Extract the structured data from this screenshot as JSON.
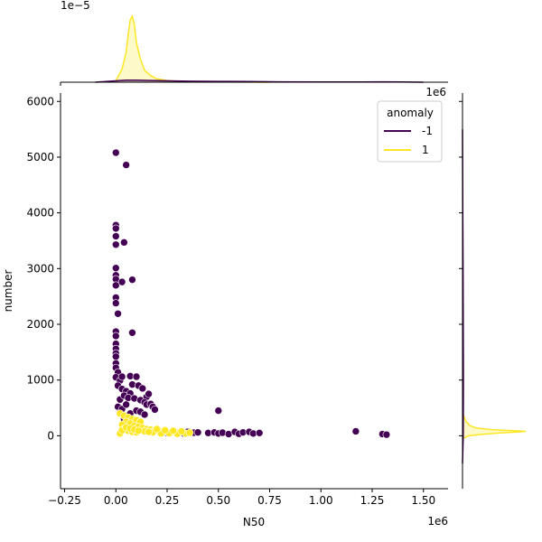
{
  "chart_data": {
    "type": "scatter",
    "xlabel": "N50",
    "ylabel": "number",
    "x_scale_text": "1e6",
    "y_scale_text": "",
    "top_marginal_scale_text": "1e−5",
    "right_marginal_scale_text": "1e6",
    "xlim": [
      -0.27,
      1.62
    ],
    "ylim": [
      -950,
      6150
    ],
    "x_ticks": [
      -0.25,
      0.0,
      0.25,
      0.5,
      0.75,
      1.0,
      1.25,
      1.5
    ],
    "x_tick_labels": [
      "−0.25",
      "0.00",
      "0.25",
      "0.50",
      "0.75",
      "1.00",
      "1.25",
      "1.50"
    ],
    "y_ticks": [
      0,
      1000,
      2000,
      3000,
      4000,
      5000,
      6000
    ],
    "y_tick_labels": [
      "0",
      "1000",
      "2000",
      "3000",
      "4000",
      "5000",
      "6000"
    ],
    "grid": false,
    "legend": {
      "title": "anomaly",
      "position": "top-right",
      "entries": [
        {
          "label": "-1",
          "color": "#440154"
        },
        {
          "label": "1",
          "color": "#fde725"
        }
      ]
    },
    "series": [
      {
        "name": "-1",
        "color": "#440154",
        "points": [
          [
            0.0,
            5080
          ],
          [
            0.05,
            4860
          ],
          [
            0.0,
            3780
          ],
          [
            0.0,
            3720
          ],
          [
            0.0,
            3580
          ],
          [
            0.0,
            3430
          ],
          [
            0.04,
            3470
          ],
          [
            0.0,
            3010
          ],
          [
            0.0,
            2880
          ],
          [
            0.0,
            2810
          ],
          [
            0.0,
            2700
          ],
          [
            0.03,
            2760
          ],
          [
            0.08,
            2800
          ],
          [
            0.0,
            2480
          ],
          [
            0.0,
            2380
          ],
          [
            0.01,
            2190
          ],
          [
            0.0,
            1870
          ],
          [
            0.0,
            1790
          ],
          [
            0.0,
            1650
          ],
          [
            0.0,
            1560
          ],
          [
            0.08,
            1850
          ],
          [
            0.0,
            1480
          ],
          [
            0.0,
            1420
          ],
          [
            0.0,
            1300
          ],
          [
            0.0,
            1220
          ],
          [
            0.01,
            1140
          ],
          [
            0.0,
            1050
          ],
          [
            0.02,
            990
          ],
          [
            0.03,
            1060
          ],
          [
            0.07,
            1070
          ],
          [
            0.1,
            1060
          ],
          [
            0.01,
            900
          ],
          [
            0.03,
            840
          ],
          [
            0.05,
            800
          ],
          [
            0.07,
            760
          ],
          [
            0.08,
            920
          ],
          [
            0.11,
            900
          ],
          [
            0.13,
            850
          ],
          [
            0.15,
            700
          ],
          [
            0.16,
            750
          ],
          [
            0.02,
            650
          ],
          [
            0.04,
            720
          ],
          [
            0.06,
            680
          ],
          [
            0.09,
            670
          ],
          [
            0.12,
            640
          ],
          [
            0.14,
            600
          ],
          [
            0.15,
            560
          ],
          [
            0.17,
            570
          ],
          [
            0.18,
            520
          ],
          [
            0.01,
            520
          ],
          [
            0.02,
            420
          ],
          [
            0.03,
            480
          ],
          [
            0.05,
            560
          ],
          [
            0.07,
            400
          ],
          [
            0.1,
            450
          ],
          [
            0.12,
            430
          ],
          [
            0.14,
            380
          ],
          [
            0.19,
            470
          ],
          [
            0.5,
            450
          ],
          [
            0.04,
            300
          ],
          [
            0.06,
            280
          ],
          [
            0.25,
            50
          ],
          [
            0.3,
            60
          ],
          [
            0.33,
            40
          ],
          [
            0.35,
            70
          ],
          [
            0.38,
            55
          ],
          [
            0.4,
            60
          ],
          [
            0.45,
            50
          ],
          [
            0.48,
            60
          ],
          [
            0.5,
            40
          ],
          [
            0.52,
            55
          ],
          [
            0.55,
            30
          ],
          [
            0.58,
            70
          ],
          [
            0.6,
            35
          ],
          [
            0.62,
            60
          ],
          [
            0.65,
            70
          ],
          [
            0.67,
            40
          ],
          [
            0.7,
            50
          ],
          [
            1.17,
            80
          ],
          [
            1.3,
            30
          ],
          [
            1.32,
            20
          ]
        ]
      },
      {
        "name": "1",
        "color": "#fde725",
        "points": [
          [
            0.02,
            400
          ],
          [
            0.04,
            360
          ],
          [
            0.06,
            330
          ],
          [
            0.08,
            300
          ],
          [
            0.1,
            280
          ],
          [
            0.12,
            250
          ],
          [
            0.05,
            250
          ],
          [
            0.03,
            200
          ],
          [
            0.07,
            220
          ],
          [
            0.09,
            180
          ],
          [
            0.11,
            160
          ],
          [
            0.13,
            140
          ],
          [
            0.15,
            120
          ],
          [
            0.17,
            110
          ],
          [
            0.19,
            100
          ],
          [
            0.21,
            90
          ],
          [
            0.23,
            80
          ],
          [
            0.25,
            70
          ],
          [
            0.27,
            65
          ],
          [
            0.29,
            60
          ],
          [
            0.31,
            55
          ],
          [
            0.04,
            130
          ],
          [
            0.06,
            90
          ],
          [
            0.08,
            70
          ],
          [
            0.1,
            60
          ],
          [
            0.14,
            80
          ],
          [
            0.18,
            60
          ],
          [
            0.22,
            40
          ],
          [
            0.26,
            45
          ],
          [
            0.3,
            35
          ],
          [
            0.34,
            40
          ],
          [
            0.36,
            55
          ],
          [
            0.02,
            40
          ],
          [
            0.03,
            100
          ],
          [
            0.05,
            150
          ],
          [
            0.07,
            130
          ],
          [
            0.09,
            110
          ],
          [
            0.11,
            90
          ],
          [
            0.16,
            70
          ],
          [
            0.2,
            120
          ],
          [
            0.24,
            100
          ],
          [
            0.28,
            90
          ],
          [
            0.32,
            80
          ]
        ]
      }
    ],
    "top_marginal_kde": {
      "series": [
        {
          "name": "1",
          "color": "#fde725",
          "x": [
            0.0,
            0.03,
            0.05,
            0.06,
            0.07,
            0.08,
            0.09,
            0.1,
            0.12,
            0.14,
            0.17,
            0.2,
            0.25,
            0.3,
            0.4,
            0.55,
            0.75
          ],
          "density": [
            0.02,
            0.2,
            0.45,
            0.72,
            0.95,
            1.0,
            0.88,
            0.6,
            0.35,
            0.18,
            0.1,
            0.05,
            0.025,
            0.015,
            0.008,
            0.004,
            0.0
          ]
        },
        {
          "name": "-1",
          "color": "#440154",
          "x": [
            -0.1,
            0.0,
            0.05,
            0.1,
            0.2,
            0.35,
            0.5,
            0.65,
            0.8,
            1.0,
            1.2,
            1.3,
            1.4,
            1.5
          ],
          "density": [
            0.0,
            0.02,
            0.03,
            0.03,
            0.025,
            0.015,
            0.012,
            0.01,
            0.006,
            0.003,
            0.004,
            0.005,
            0.003,
            0.0
          ]
        }
      ]
    },
    "right_marginal_kde": {
      "series": [
        {
          "name": "1",
          "color": "#fde725",
          "y": [
            -50,
            0,
            25,
            50,
            70,
            80,
            90,
            110,
            140,
            180,
            250,
            350,
            450
          ],
          "density": [
            0.0,
            0.1,
            0.3,
            0.6,
            0.9,
            1.0,
            0.8,
            0.45,
            0.22,
            0.12,
            0.06,
            0.02,
            0.0
          ]
        },
        {
          "name": "-1",
          "color": "#440154",
          "y": [
            -500,
            0,
            1000,
            2000,
            3000,
            4000,
            5000,
            5500
          ],
          "density": [
            0.0,
            0.012,
            0.015,
            0.012,
            0.008,
            0.004,
            0.002,
            0.0
          ]
        }
      ]
    }
  }
}
